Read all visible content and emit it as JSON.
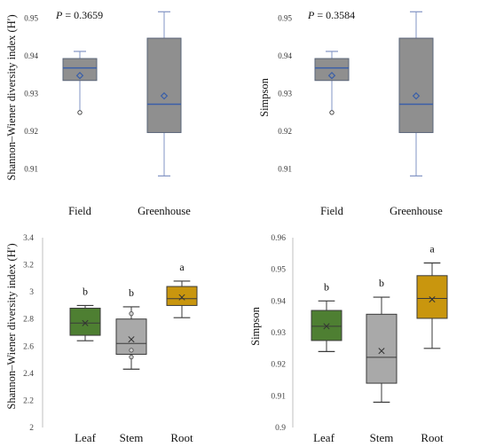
{
  "chart_data": [
    {
      "type": "box",
      "panel": "top-left",
      "ylabel": "Shannon–Wiener diversity index (H′)",
      "annotation": "P = 0.3659",
      "annotation_prefix": "P",
      "annotation_rest": " = 0.3659",
      "ylim": [
        0.905,
        0.952
      ],
      "yticks": [
        "0.95",
        "0.94",
        "0.93",
        "0.92",
        "0.91"
      ],
      "categories": [
        "Field",
        "Greenhouse"
      ],
      "boxes": [
        {
          "name": "Field",
          "whisker_low": 0.925,
          "q1": 0.9335,
          "median": 0.9368,
          "q3": 0.9393,
          "whisker_high": 0.9412,
          "mean": 0.9348,
          "outliers": [
            0.925
          ],
          "fill": "#8f8f8f"
        },
        {
          "name": "Greenhouse",
          "whisker_low": 0.9082,
          "q1": 0.9197,
          "median": 0.9272,
          "q3": 0.9447,
          "whisker_high": 0.9517,
          "mean": 0.9294,
          "outliers": [],
          "fill": "#8f8f8f"
        }
      ]
    },
    {
      "type": "box",
      "panel": "top-right",
      "ylabel": "Simpson",
      "annotation": "P = 0.3584",
      "annotation_prefix": "P",
      "annotation_rest": " = 0.3584",
      "ylim": [
        0.905,
        0.952
      ],
      "yticks": [
        "0.95",
        "0.94",
        "0.93",
        "0.92",
        "0.91"
      ],
      "categories": [
        "Field",
        "Greenhouse"
      ],
      "boxes": [
        {
          "name": "Field",
          "whisker_low": 0.925,
          "q1": 0.9335,
          "median": 0.9368,
          "q3": 0.9393,
          "whisker_high": 0.9412,
          "mean": 0.9348,
          "outliers": [
            0.925
          ],
          "fill": "#8f8f8f"
        },
        {
          "name": "Greenhouse",
          "whisker_low": 0.9082,
          "q1": 0.9197,
          "median": 0.9272,
          "q3": 0.9447,
          "whisker_high": 0.9517,
          "mean": 0.9294,
          "outliers": [],
          "fill": "#8f8f8f"
        }
      ]
    },
    {
      "type": "box",
      "panel": "bottom-left",
      "ylabel": "Shannon–Wiener diversity index (H′)",
      "ylim": [
        2.0,
        3.4
      ],
      "yticks": [
        "3.4",
        "3.2",
        "3",
        "2.8",
        "2.6",
        "2.4",
        "2.2",
        "2"
      ],
      "categories": [
        "Leaf",
        "Stem",
        "Root"
      ],
      "boxes": [
        {
          "name": "Leaf",
          "whisker_low": 2.64,
          "q1": 2.68,
          "median": 2.77,
          "q3": 2.88,
          "whisker_high": 2.9,
          "mean": 2.77,
          "outliers": [],
          "fill": "#4e7f32",
          "letter": "b"
        },
        {
          "name": "Stem",
          "whisker_low": 2.43,
          "q1": 2.54,
          "median": 2.62,
          "q3": 2.8,
          "whisker_high": 2.89,
          "mean": 2.65,
          "outliers": [
            2.84,
            2.57,
            2.52
          ],
          "fill": "#a9a9a9",
          "letter": "b"
        },
        {
          "name": "Root",
          "whisker_low": 2.81,
          "q1": 2.9,
          "median": 2.95,
          "q3": 3.04,
          "whisker_high": 3.08,
          "mean": 2.96,
          "outliers": [],
          "fill": "#c9960e",
          "letter": "a"
        }
      ]
    },
    {
      "type": "box",
      "panel": "bottom-right",
      "ylabel": "Simpson",
      "ylim": [
        0.9,
        0.96
      ],
      "yticks": [
        "0.96",
        "0.95",
        "0.94",
        "0.93",
        "0.92",
        "0.91",
        "0.9"
      ],
      "categories": [
        "Leaf",
        "Stem",
        "Root"
      ],
      "boxes": [
        {
          "name": "Leaf",
          "whisker_low": 0.924,
          "q1": 0.9275,
          "median": 0.932,
          "q3": 0.937,
          "whisker_high": 0.94,
          "mean": 0.932,
          "outliers": [],
          "fill": "#4e7f32",
          "letter": "b"
        },
        {
          "name": "Stem",
          "whisker_low": 0.908,
          "q1": 0.914,
          "median": 0.9222,
          "q3": 0.9358,
          "whisker_high": 0.9412,
          "mean": 0.9242,
          "outliers": [],
          "fill": "#a9a9a9",
          "letter": "b"
        },
        {
          "name": "Root",
          "whisker_low": 0.925,
          "q1": 0.9345,
          "median": 0.9408,
          "q3": 0.948,
          "whisker_high": 0.952,
          "mean": 0.9405,
          "outliers": [],
          "fill": "#c9960e",
          "letter": "a"
        }
      ]
    }
  ],
  "style": {
    "top_box_stroke": "#5a6478",
    "top_median_color": "#3a5fa8",
    "top_whisker_color": "#8294c4",
    "top_mean_color": "#3a5fa8",
    "bottom_box_stroke": "#3a3a3a",
    "bottom_axis_color": "#bfbfbf"
  }
}
